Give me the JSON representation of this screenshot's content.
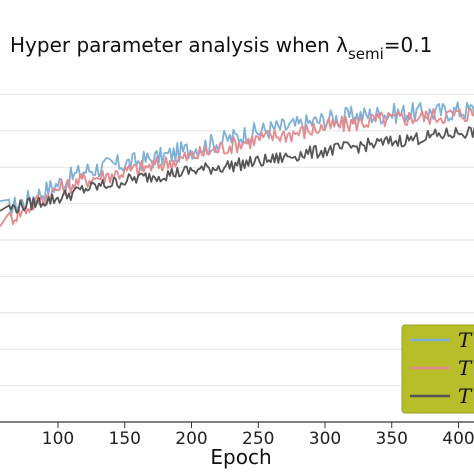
{
  "chart_data": {
    "type": "line",
    "title": "Hyper parameter analysis when λ",
    "title_sub": "semi",
    "title_suffix": "=0.1",
    "xlabel": "Epoch",
    "ylabel": "",
    "xlim": [
      62,
      420
    ],
    "ylim": [
      0,
      1
    ],
    "x_ticks": [
      100,
      150,
      200,
      250,
      300,
      350,
      400
    ],
    "grid": "horizontal",
    "legend_position": "bottom-right",
    "legend_background": "#b8bd2a",
    "series": [
      {
        "name": "T",
        "color": "#7fb0d8",
        "points": [
          [
            62,
            0.585
          ],
          [
            80,
            0.615
          ],
          [
            100,
            0.655
          ],
          [
            120,
            0.69
          ],
          [
            140,
            0.705
          ],
          [
            160,
            0.715
          ],
          [
            180,
            0.73
          ],
          [
            200,
            0.75
          ],
          [
            220,
            0.77
          ],
          [
            240,
            0.79
          ],
          [
            260,
            0.805
          ],
          [
            280,
            0.815
          ],
          [
            300,
            0.83
          ],
          [
            320,
            0.84
          ],
          [
            340,
            0.845
          ],
          [
            360,
            0.85
          ],
          [
            380,
            0.85
          ],
          [
            400,
            0.855
          ],
          [
            420,
            0.86
          ]
        ]
      },
      {
        "name": "T",
        "color": "#e58a8f",
        "points": [
          [
            62,
            0.555
          ],
          [
            80,
            0.595
          ],
          [
            100,
            0.64
          ],
          [
            120,
            0.665
          ],
          [
            140,
            0.68
          ],
          [
            160,
            0.695
          ],
          [
            180,
            0.71
          ],
          [
            200,
            0.73
          ],
          [
            220,
            0.75
          ],
          [
            240,
            0.77
          ],
          [
            260,
            0.785
          ],
          [
            280,
            0.795
          ],
          [
            300,
            0.81
          ],
          [
            320,
            0.82
          ],
          [
            340,
            0.83
          ],
          [
            360,
            0.835
          ],
          [
            380,
            0.84
          ],
          [
            400,
            0.845
          ],
          [
            420,
            0.85
          ]
        ]
      },
      {
        "name": "T",
        "color": "#555555",
        "points": [
          [
            62,
            0.585
          ],
          [
            80,
            0.6
          ],
          [
            100,
            0.615
          ],
          [
            120,
            0.64
          ],
          [
            140,
            0.655
          ],
          [
            160,
            0.67
          ],
          [
            180,
            0.68
          ],
          [
            200,
            0.69
          ],
          [
            220,
            0.7
          ],
          [
            240,
            0.71
          ],
          [
            260,
            0.72
          ],
          [
            280,
            0.735
          ],
          [
            300,
            0.745
          ],
          [
            320,
            0.755
          ],
          [
            340,
            0.765
          ],
          [
            360,
            0.775
          ],
          [
            380,
            0.785
          ],
          [
            400,
            0.795
          ],
          [
            420,
            0.8
          ]
        ]
      }
    ]
  }
}
